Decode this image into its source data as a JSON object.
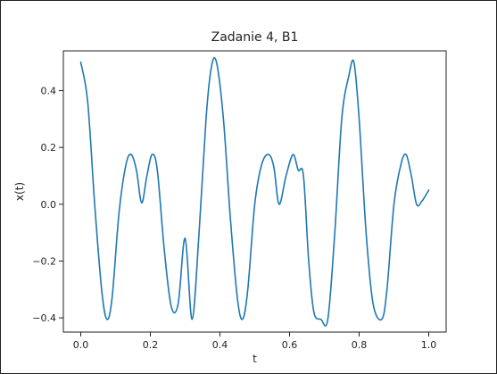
{
  "chart_data": {
    "type": "line",
    "title": "Zadanie 4, B1",
    "xlabel": "t",
    "ylabel": "x(t)",
    "xlim": [
      -0.05,
      1.05
    ],
    "ylim": [
      -0.45,
      0.54
    ],
    "xticks": [
      0.0,
      0.2,
      0.4,
      0.6,
      0.8,
      1.0
    ],
    "xtick_labels": [
      "0.0",
      "0.2",
      "0.4",
      "0.6",
      "0.8",
      "1.0"
    ],
    "yticks": [
      -0.4,
      -0.2,
      0.0,
      0.2,
      0.4
    ],
    "ytick_labels": [
      "−0.4",
      "−0.2",
      "0.0",
      "0.2",
      "0.4"
    ],
    "grid": false,
    "line_color": "#1f77b4",
    "series": [
      {
        "x": [
          0.0,
          0.02,
          0.04,
          0.06,
          0.075,
          0.09,
          0.11,
          0.13,
          0.145,
          0.16,
          0.175,
          0.19,
          0.205,
          0.22,
          0.24,
          0.26,
          0.28,
          0.3,
          0.32,
          0.34,
          0.36,
          0.375,
          0.39,
          0.41,
          0.43,
          0.45,
          0.465,
          0.48,
          0.5,
          0.52,
          0.54,
          0.555,
          0.57,
          0.59,
          0.61,
          0.625,
          0.64,
          0.655,
          0.67,
          0.69,
          0.71,
          0.73,
          0.75,
          0.77,
          0.785,
          0.8,
          0.82,
          0.84,
          0.865,
          0.88,
          0.9,
          0.92,
          0.935,
          0.95,
          0.965,
          0.98,
          1.0
        ],
        "y": [
          0.5,
          0.36,
          0.0,
          -0.3,
          -0.405,
          -0.33,
          -0.03,
          0.14,
          0.175,
          0.12,
          0.005,
          0.1,
          0.175,
          0.12,
          -0.16,
          -0.36,
          -0.35,
          -0.12,
          -0.405,
          -0.1,
          0.3,
          0.48,
          0.5,
          0.3,
          -0.05,
          -0.33,
          -0.405,
          -0.3,
          0.0,
          0.14,
          0.175,
          0.13,
          0.0,
          0.1,
          0.175,
          0.12,
          0.1,
          -0.2,
          -0.38,
          -0.405,
          -0.405,
          -0.1,
          0.3,
          0.45,
          0.5,
          0.3,
          -0.1,
          -0.35,
          -0.405,
          -0.3,
          0.0,
          0.14,
          0.175,
          0.1,
          0.0,
          0.01,
          0.05
        ]
      }
    ]
  }
}
